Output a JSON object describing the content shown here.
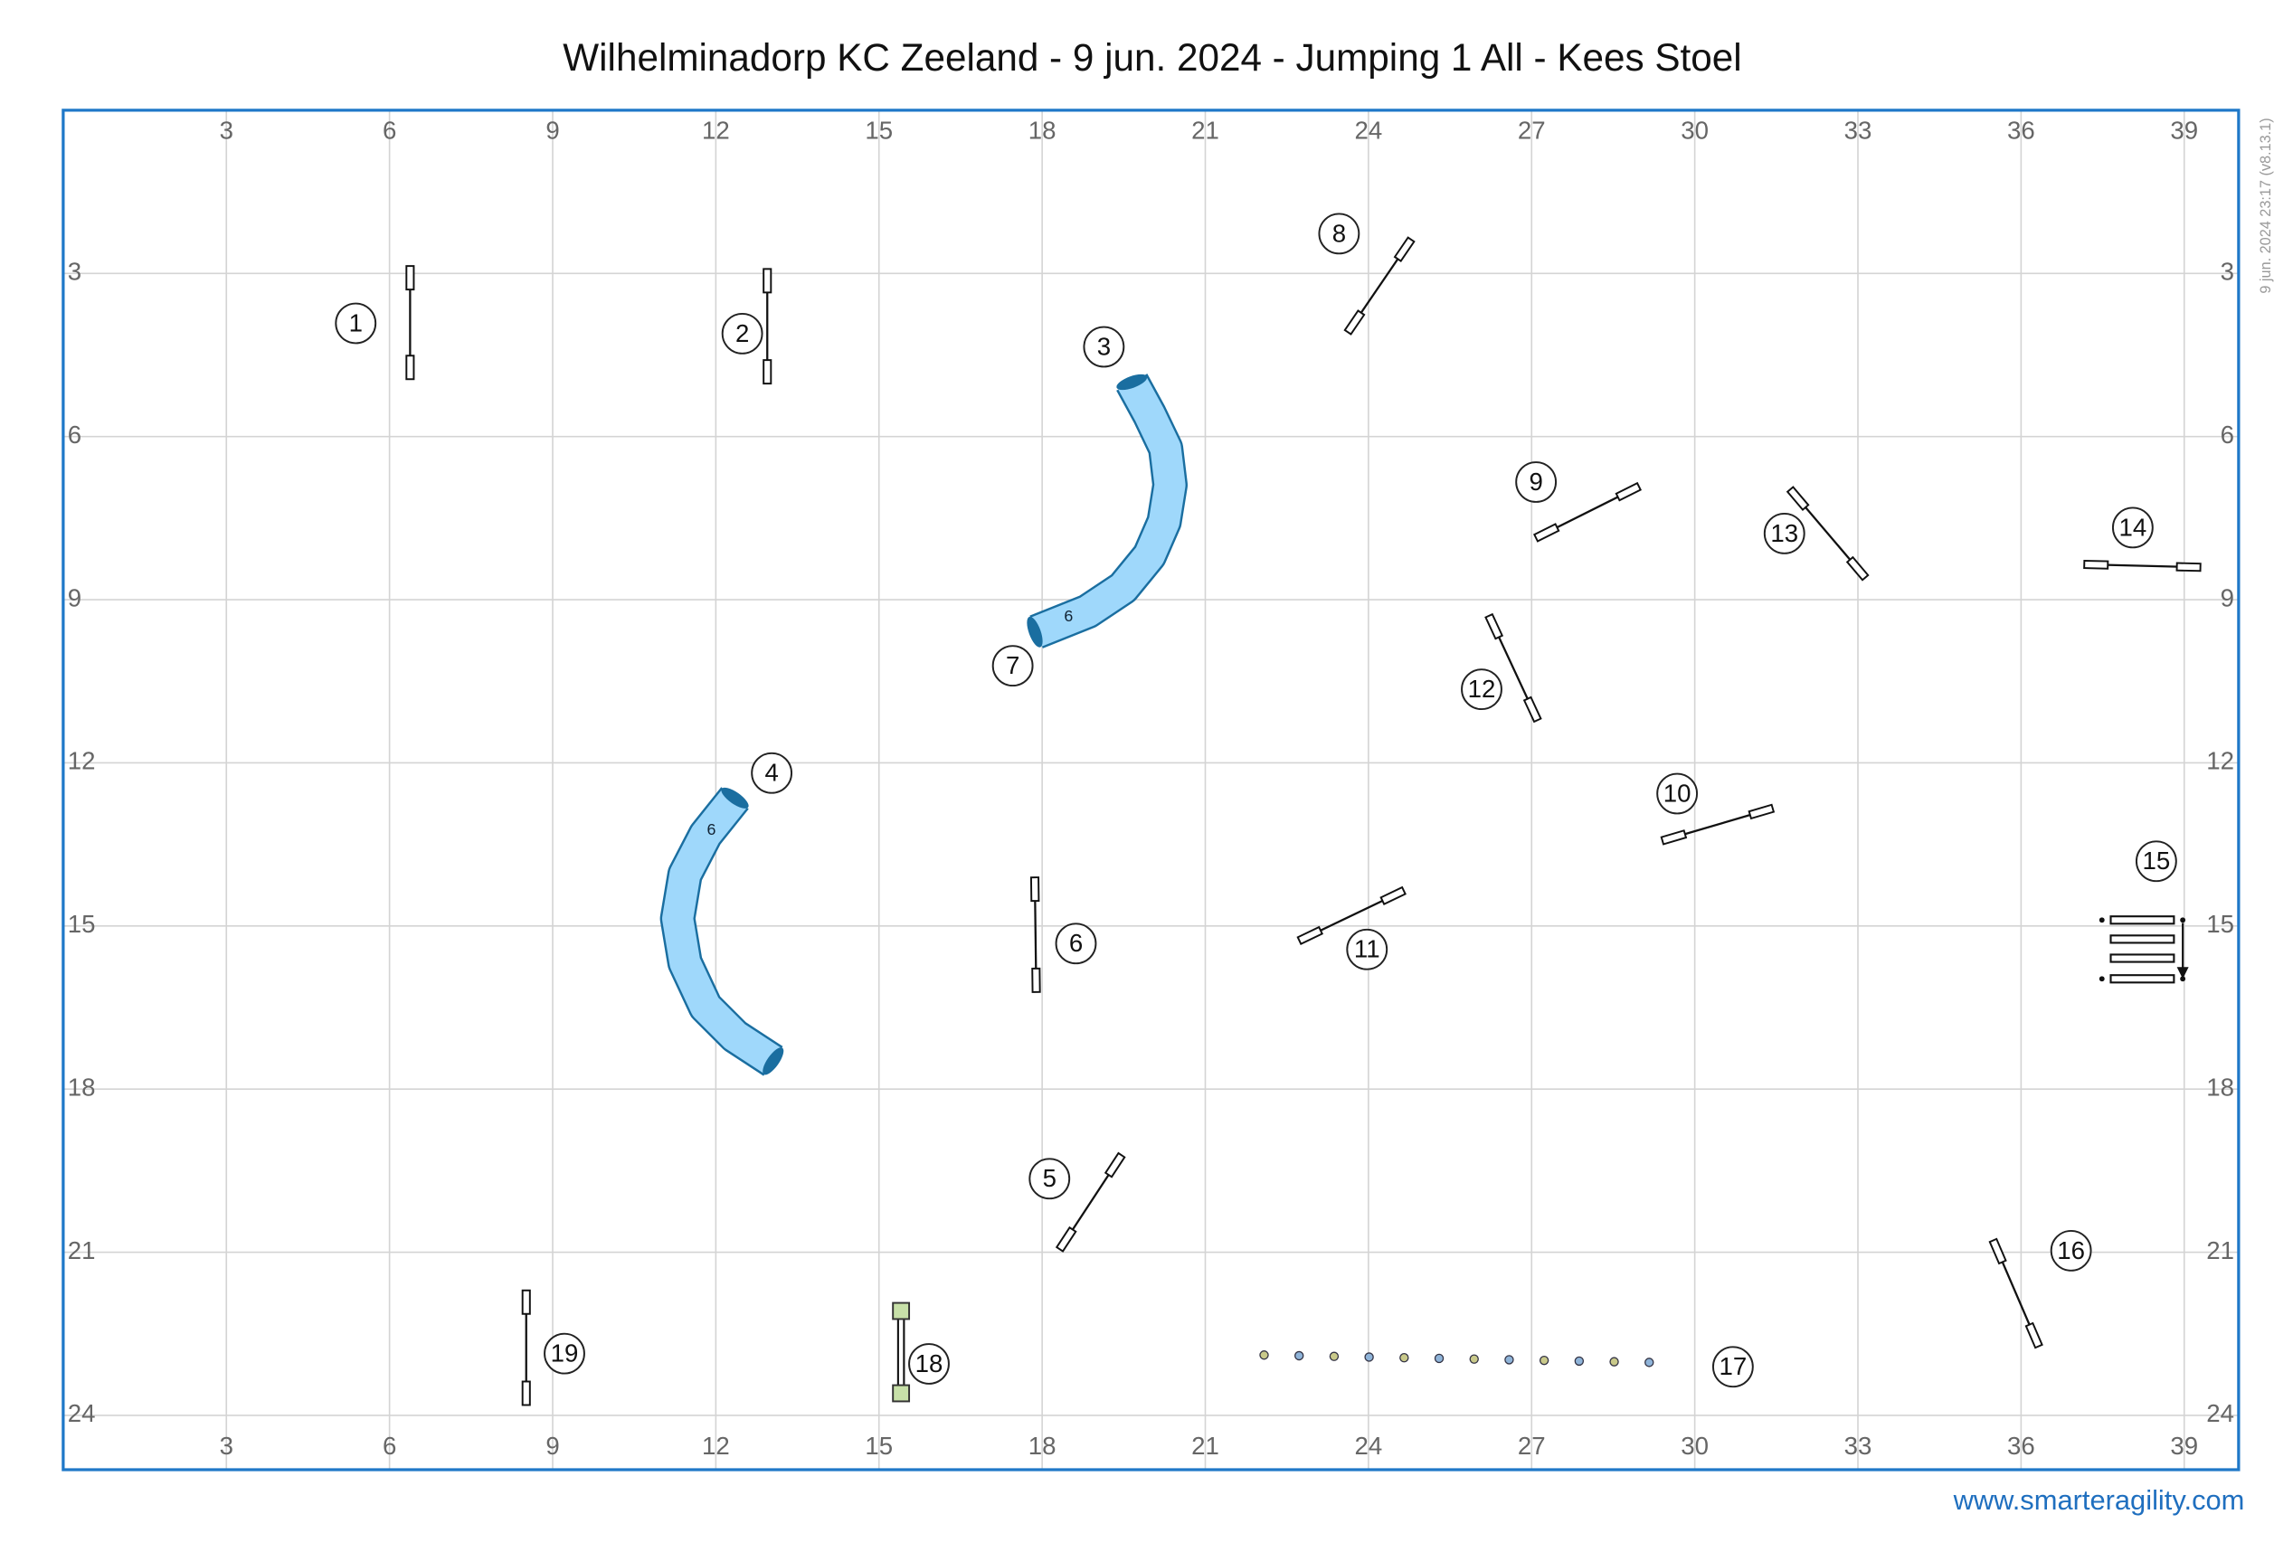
{
  "header": {
    "title": "Wilhelminadorp KC Zeeland - 9 jun. 2024 - Jumping 1 All - Kees Stoel"
  },
  "version": "9 jun. 2024 23:17  (v8.13.1)",
  "footer": "www.smarteragility.com",
  "grid": {
    "xlim": [
      0,
      40
    ],
    "ylim": [
      0,
      25
    ],
    "xticks": [
      3,
      6,
      9,
      12,
      15,
      18,
      21,
      24,
      27,
      30,
      33,
      36,
      39
    ],
    "yticks": [
      3,
      6,
      9,
      12,
      15,
      18,
      21,
      24
    ]
  },
  "obstacles": [
    {
      "label": "1"
    },
    {
      "label": "2"
    },
    {
      "label": "3"
    },
    {
      "label": "4"
    },
    {
      "label": "5"
    },
    {
      "label": "6"
    },
    {
      "label": "7"
    },
    {
      "label": "8"
    },
    {
      "label": "9"
    },
    {
      "label": "10"
    },
    {
      "label": "11"
    },
    {
      "label": "12"
    },
    {
      "label": "13"
    },
    {
      "label": "14"
    },
    {
      "label": "15"
    },
    {
      "label": "16"
    },
    {
      "label": "17"
    },
    {
      "label": "18"
    },
    {
      "label": "19"
    }
  ],
  "tunnels": [
    {
      "length": "6"
    },
    {
      "length": "6"
    }
  ]
}
